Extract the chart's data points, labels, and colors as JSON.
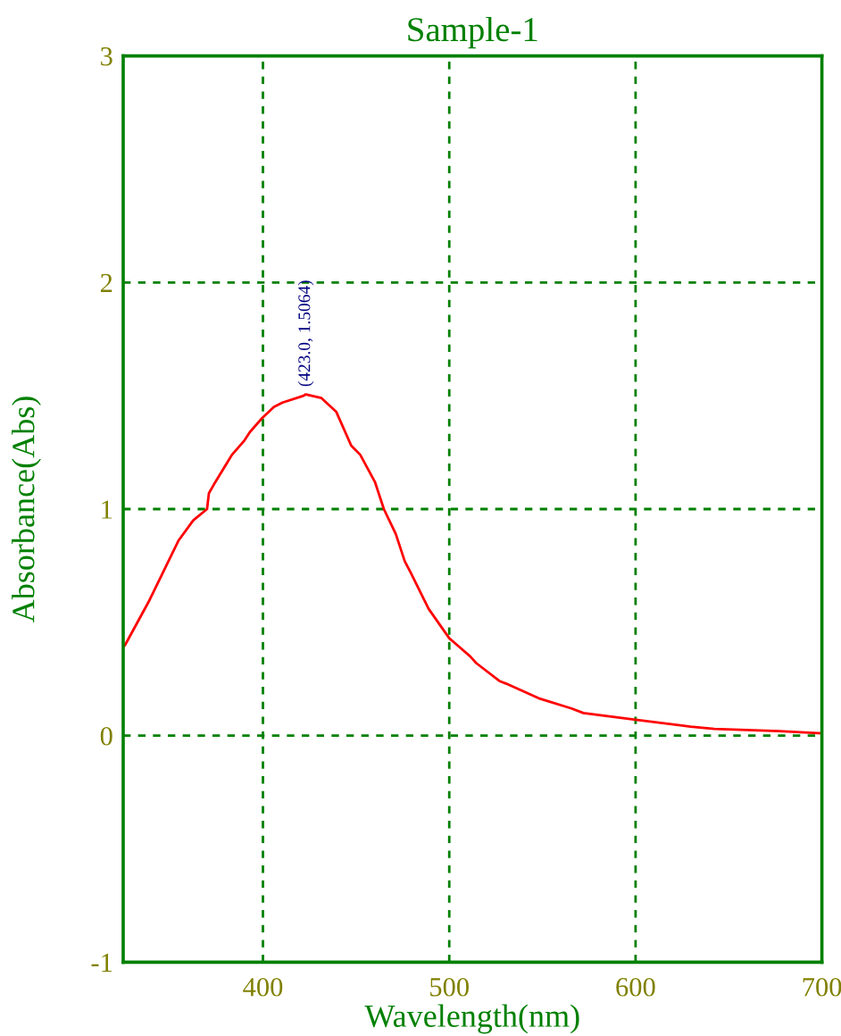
{
  "chart_data": {
    "type": "line",
    "title": "Sample-1",
    "xlabel": "Wavelength(nm)",
    "ylabel": "Absorbance(Abs)",
    "x": [
      325,
      326,
      338.6,
      354.6,
      362.6,
      370,
      371,
      373.8,
      383.4,
      389.8,
      393,
      399.4,
      405.8,
      410.5,
      421.8,
      423,
      431.4,
      439.3,
      447.4,
      452.2,
      460.1,
      464.9,
      471.3,
      476.1,
      479.3,
      488.9,
      500,
      511.2,
      514.5,
      527.2,
      530.4,
      548,
      565.6,
      572,
      600,
      629.5,
      642.3,
      677,
      700
    ],
    "values": [
      0.39,
      0.4,
      0.59,
      0.86,
      0.95,
      1.0,
      1.07,
      1.11,
      1.24,
      1.3,
      1.34,
      1.4,
      1.45,
      1.47,
      1.5,
      1.5064,
      1.49,
      1.43,
      1.28,
      1.24,
      1.12,
      1.0,
      0.89,
      0.77,
      0.72,
      0.56,
      0.43,
      0.35,
      0.32,
      0.24,
      0.23,
      0.165,
      0.12,
      0.1,
      0.07,
      0.04,
      0.03,
      0.02,
      0.01
    ],
    "color": "#ff0000",
    "line_style": "solid",
    "xlim": [
      325,
      700
    ],
    "xticks": [
      400,
      500,
      600,
      700
    ],
    "ylim": [
      -1,
      3
    ],
    "yticks": [
      -1,
      0,
      1,
      2,
      3
    ],
    "grid": true,
    "annotations": [
      {
        "text": "(423.0, 1.5064)",
        "x": 423.0,
        "y": 1.5064
      }
    ]
  }
}
